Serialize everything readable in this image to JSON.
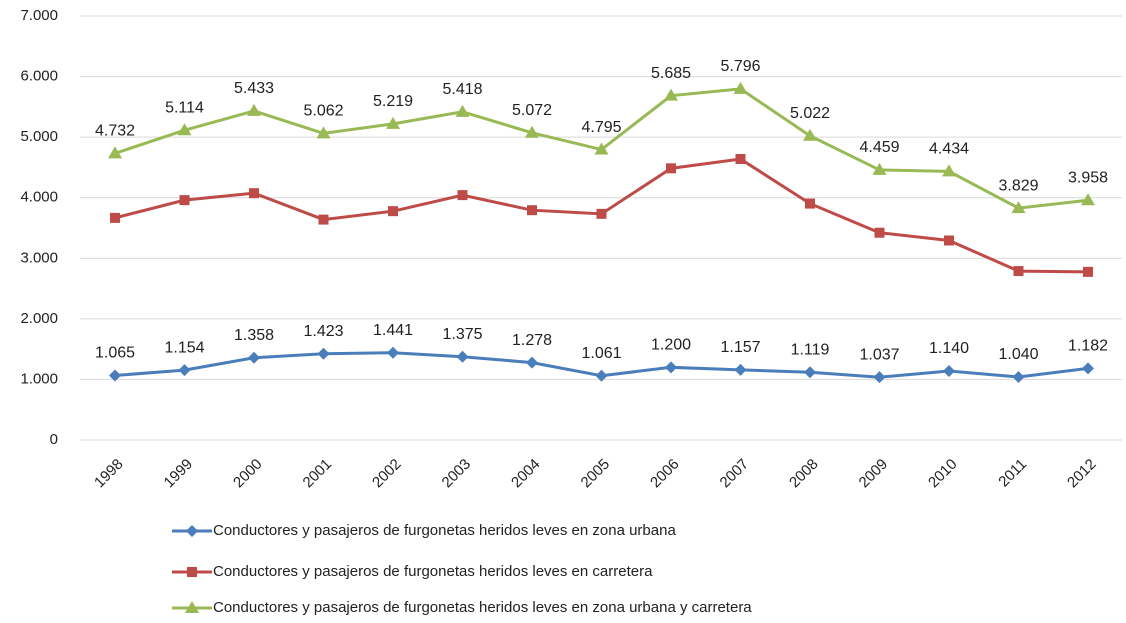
{
  "chart_data": {
    "type": "line",
    "categories": [
      "1998",
      "1999",
      "2000",
      "2001",
      "2002",
      "2003",
      "2004",
      "2005",
      "2006",
      "2007",
      "2008",
      "2009",
      "2010",
      "2011",
      "2012"
    ],
    "series": [
      {
        "name": "Conductores y pasajeros de furgonetas heridos leves en zona urbana",
        "color": "#4a7ebb",
        "marker": "diamond",
        "values": [
          1065,
          1154,
          1358,
          1423,
          1441,
          1375,
          1278,
          1061,
          1200,
          1157,
          1119,
          1037,
          1140,
          1040,
          1182
        ],
        "value_labels": [
          "1.065",
          "1.154",
          "1.358",
          "1.423",
          "1.441",
          "1.375",
          "1.278",
          "1.061",
          "1.200",
          "1.157",
          "1.119",
          "1.037",
          "1.140",
          "1.040",
          "1.182"
        ]
      },
      {
        "name": "Conductores y pasajeros de furgonetas heridos leves en carretera",
        "color": "#be4b48",
        "marker": "square",
        "values": [
          3667,
          3960,
          4075,
          3639,
          3778,
          4043,
          3794,
          3734,
          4485,
          4639,
          3903,
          3422,
          3294,
          2789,
          2776
        ]
      },
      {
        "name": "Conductores y pasajeros de furgonetas heridos leves en zona urbana y carretera",
        "color": "#98b954",
        "marker": "triangle",
        "values": [
          4732,
          5114,
          5433,
          5062,
          5219,
          5418,
          5072,
          4795,
          5685,
          5796,
          5022,
          4459,
          4434,
          3829,
          3958
        ],
        "value_labels": [
          "4.732",
          "5.114",
          "5.433",
          "5.062",
          "5.219",
          "5.418",
          "5.072",
          "4.795",
          "5.685",
          "5.796",
          "5.022",
          "4.459",
          "4.434",
          "3.829",
          "3.958"
        ]
      }
    ],
    "ylim": [
      0,
      7000
    ],
    "yticks": [
      0,
      {
        "value": 1000,
        "label": "1.000"
      },
      {
        "value": 2000,
        "label": "2.000"
      },
      {
        "value": 3000,
        "label": "3.000"
      },
      {
        "value": 4000,
        "label": "4.000"
      },
      {
        "value": 5000,
        "label": "5.000"
      },
      {
        "value": 6000,
        "label": "6.000"
      },
      {
        "value": 7000,
        "label": "7.000"
      }
    ],
    "grid": true
  }
}
